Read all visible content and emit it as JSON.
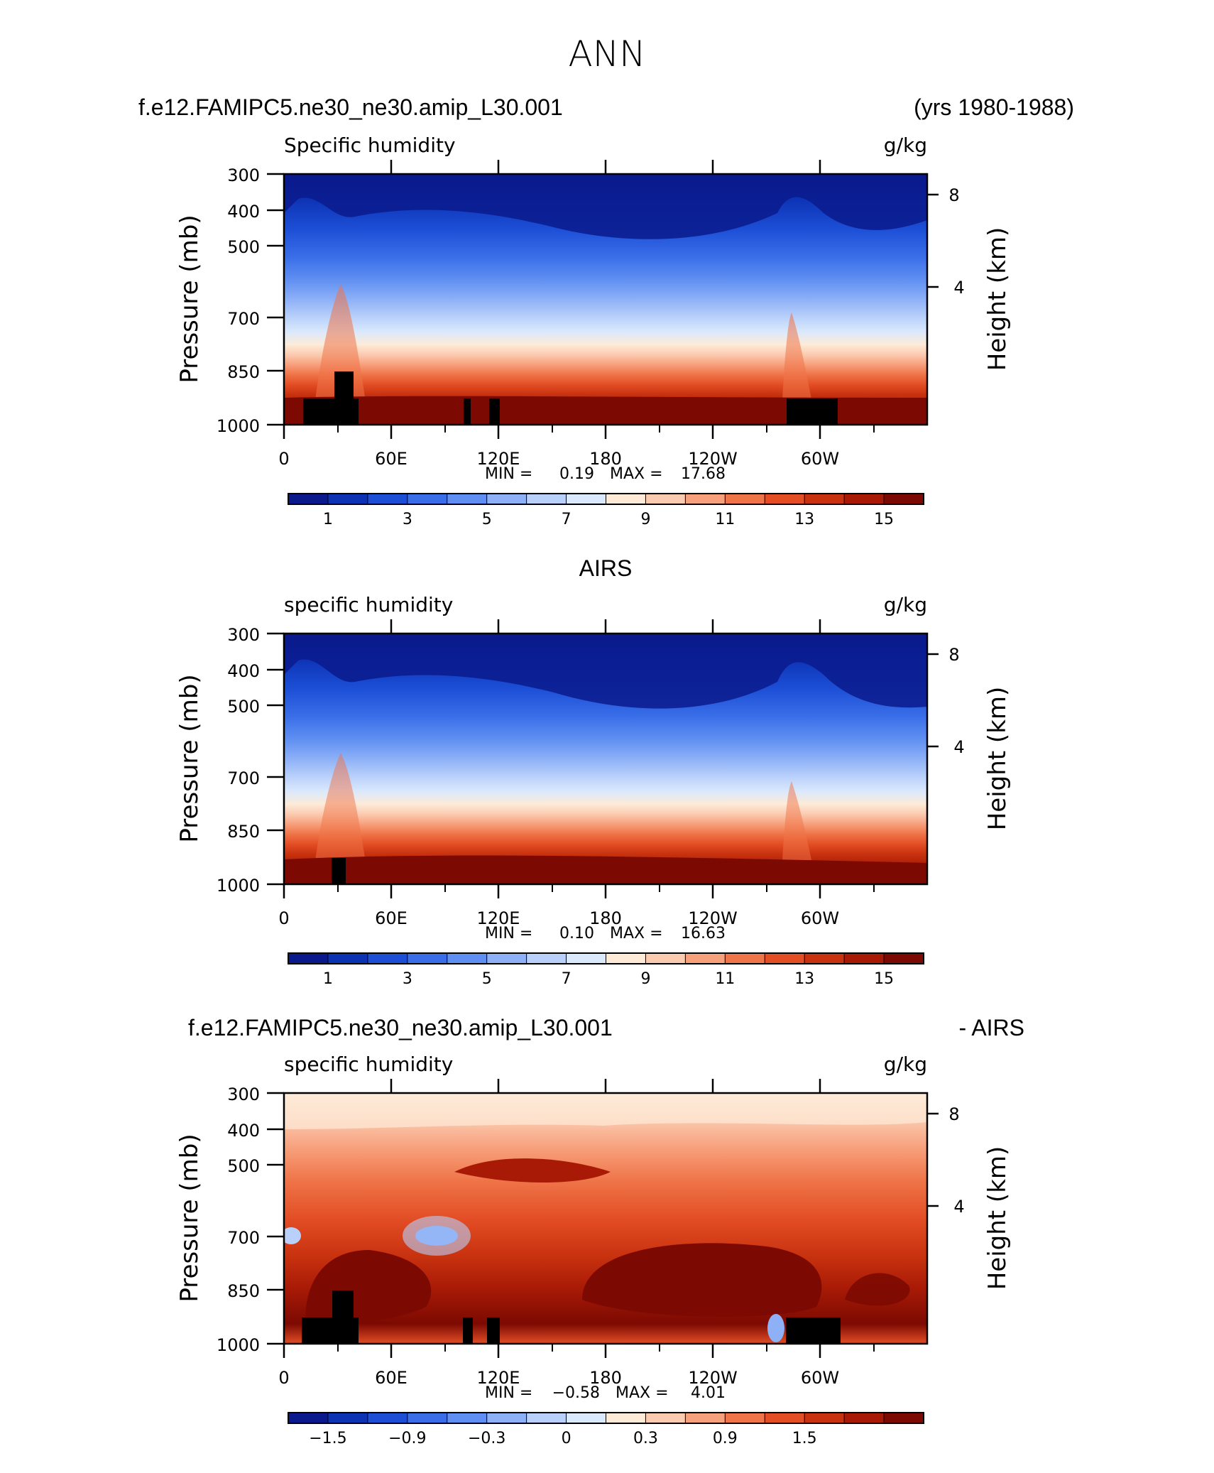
{
  "page_title": "ANN",
  "chart_data": [
    {
      "type": "heatmap",
      "title_left": "f.e12.FAMIPC5.ne30_ne30.amip_L30.001",
      "title_right": "(yrs 1980-1988)",
      "variable": "Specific humidity",
      "units": "g/kg",
      "ylabel": "Pressure (mb)",
      "y2label": "Height (km)",
      "yticks": [
        "300",
        "400",
        "500",
        "700",
        "850",
        "1000"
      ],
      "y2ticks": [
        "8",
        "4"
      ],
      "xticks": [
        "0",
        "60E",
        "120E",
        "180",
        "120W",
        "60W"
      ],
      "min_label": "MIN =",
      "min_value": "0.19",
      "max_label": "MAX =",
      "max_value": "17.68",
      "colorbar_labels": [
        "1",
        "3",
        "5",
        "7",
        "9",
        "11",
        "13",
        "15"
      ],
      "colorbar_colors": [
        "#0a1a8c",
        "#0d33b5",
        "#1c4fd6",
        "#3a6ee8",
        "#5f8ff2",
        "#8db0f7",
        "#b8d0fa",
        "#dbe9fc",
        "#fdebd8",
        "#fbcbb0",
        "#f7a07c",
        "#ef7448",
        "#e34e25",
        "#c8320f",
        "#a81a06",
        "#7c0a02"
      ]
    },
    {
      "type": "heatmap",
      "title_center": "AIRS",
      "variable": "specific humidity",
      "units": "g/kg",
      "ylabel": "Pressure (mb)",
      "y2label": "Height (km)",
      "yticks": [
        "300",
        "400",
        "500",
        "700",
        "850",
        "1000"
      ],
      "y2ticks": [
        "8",
        "4"
      ],
      "xticks": [
        "0",
        "60E",
        "120E",
        "180",
        "120W",
        "60W"
      ],
      "min_label": "MIN =",
      "min_value": "0.10",
      "max_label": "MAX =",
      "max_value": "16.63",
      "colorbar_labels": [
        "1",
        "3",
        "5",
        "7",
        "9",
        "11",
        "13",
        "15"
      ],
      "colorbar_colors": [
        "#0a1a8c",
        "#0d33b5",
        "#1c4fd6",
        "#3a6ee8",
        "#5f8ff2",
        "#8db0f7",
        "#b8d0fa",
        "#dbe9fc",
        "#fdebd8",
        "#fbcbb0",
        "#f7a07c",
        "#ef7448",
        "#e34e25",
        "#c8320f",
        "#a81a06",
        "#7c0a02"
      ]
    },
    {
      "type": "heatmap",
      "title_left": "f.e12.FAMIPC5.ne30_ne30.amip_L30.001",
      "title_right": "- AIRS",
      "variable": "specific humidity",
      "units": "g/kg",
      "ylabel": "Pressure (mb)",
      "y2label": "Height (km)",
      "yticks": [
        "300",
        "400",
        "500",
        "700",
        "850",
        "1000"
      ],
      "y2ticks": [
        "8",
        "4"
      ],
      "xticks": [
        "0",
        "60E",
        "120E",
        "180",
        "120W",
        "60W"
      ],
      "min_label": "MIN =",
      "min_value": "−0.58",
      "max_label": "MAX =",
      "max_value": "4.01",
      "colorbar_labels": [
        "−1.5",
        "−0.9",
        "−0.3",
        "0",
        "0.3",
        "0.9",
        "1.5"
      ],
      "colorbar_colors": [
        "#0a1a8c",
        "#0d33b5",
        "#1c4fd6",
        "#3a6ee8",
        "#5f8ff2",
        "#8db0f7",
        "#b8d0fa",
        "#dbe9fc",
        "#fdebd8",
        "#fbcbb0",
        "#f7a07c",
        "#ef7448",
        "#e34e25",
        "#c8320f",
        "#a81a06",
        "#7c0a02"
      ]
    }
  ]
}
